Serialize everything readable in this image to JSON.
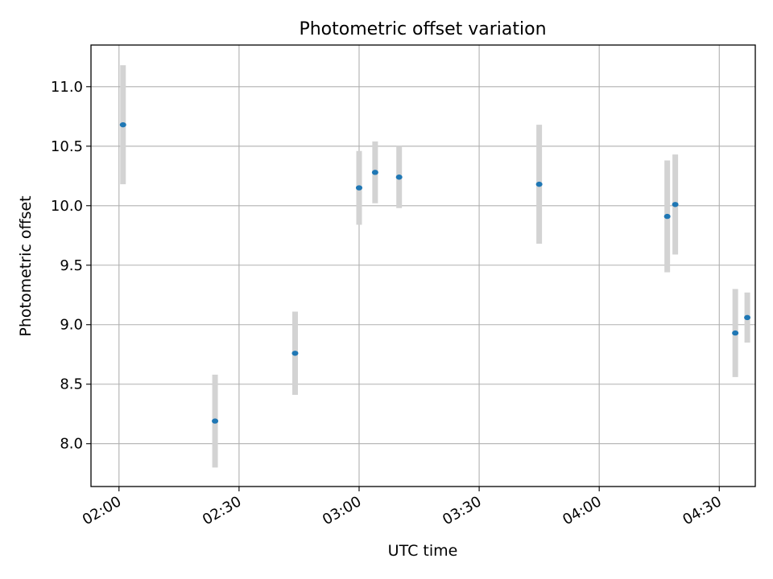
{
  "chart_data": {
    "type": "scatter",
    "title": "Photometric offset variation",
    "xlabel": "UTC time",
    "ylabel": "Photometric offset",
    "x_ticks": [
      "02:00",
      "02:30",
      "03:00",
      "03:30",
      "04:00",
      "04:30"
    ],
    "y_ticks": [
      "8.0",
      "8.5",
      "9.0",
      "9.5",
      "10.0",
      "10.5",
      "11.0"
    ],
    "xlim": [
      "01:53",
      "04:39"
    ],
    "ylim": [
      7.64,
      11.35
    ],
    "grid": true,
    "point_color": "#1f77b4",
    "errorbar_color": "#d3d3d3",
    "points": [
      {
        "x": "02:01",
        "y": 10.68,
        "yerr": 0.5
      },
      {
        "x": "02:24",
        "y": 8.19,
        "yerr": 0.39
      },
      {
        "x": "02:44",
        "y": 8.76,
        "yerr": 0.35
      },
      {
        "x": "03:00",
        "y": 10.15,
        "yerr": 0.31
      },
      {
        "x": "03:04",
        "y": 10.28,
        "yerr": 0.26
      },
      {
        "x": "03:10",
        "y": 10.24,
        "yerr": 0.26
      },
      {
        "x": "03:45",
        "y": 10.18,
        "yerr": 0.5
      },
      {
        "x": "04:17",
        "y": 9.91,
        "yerr": 0.47
      },
      {
        "x": "04:19",
        "y": 10.01,
        "yerr": 0.42
      },
      {
        "x": "04:34",
        "y": 8.93,
        "yerr": 0.37
      },
      {
        "x": "04:37",
        "y": 9.06,
        "yerr": 0.21
      }
    ]
  }
}
